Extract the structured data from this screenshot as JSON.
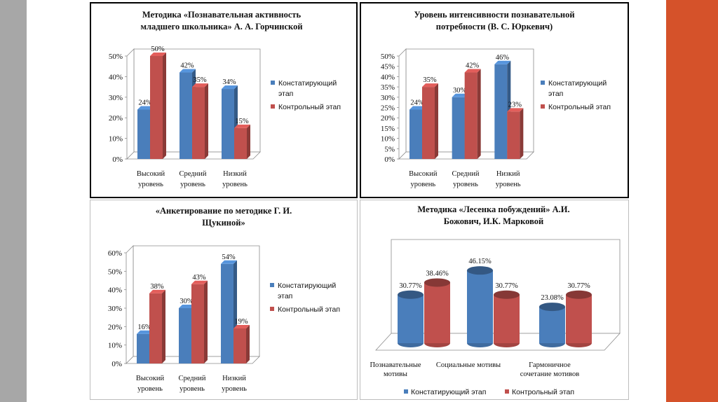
{
  "colors": {
    "blue": "#4a7ebb",
    "red": "#c0504d"
  },
  "chart_data": [
    {
      "type": "bar",
      "title_lines": [
        "Методика «Познавательная активность",
        "младшего школьника» А. А. Горчинской"
      ],
      "categories": [
        [
          "Высокий",
          "уровень"
        ],
        [
          "Средний",
          "уровень"
        ],
        [
          "Низкий",
          "уровень"
        ]
      ],
      "series": [
        {
          "name": "Констатирующий этап",
          "legend_lines": [
            "Констатирующий",
            "этап"
          ],
          "values": [
            24,
            42,
            34
          ],
          "labels": [
            "24%",
            "42%",
            "34%"
          ]
        },
        {
          "name": "Контрольный этап",
          "legend_lines": [
            "Контрольный этап"
          ],
          "values": [
            50,
            35,
            15
          ],
          "labels": [
            "50%",
            "35%",
            "15%"
          ]
        }
      ],
      "ylim": [
        0,
        50
      ],
      "ystep": 10,
      "yticks": [
        "0%",
        "10%",
        "20%",
        "30%",
        "40%",
        "50%"
      ]
    },
    {
      "type": "bar",
      "title_lines": [
        "Уровень интенсивности познавательной",
        "потребности (В. С. Юркевич)"
      ],
      "categories": [
        [
          "Высокий",
          "уровень"
        ],
        [
          "Средний",
          "уровень"
        ],
        [
          "Низкий",
          "уровень"
        ]
      ],
      "series": [
        {
          "name": "Констатирующий этап",
          "legend_lines": [
            "Констатирующий",
            "этап"
          ],
          "values": [
            24,
            30,
            46
          ],
          "labels": [
            "24%",
            "30%",
            "46%"
          ]
        },
        {
          "name": "Контрольный этап",
          "legend_lines": [
            "Контрольный этап"
          ],
          "values": [
            35,
            42,
            23
          ],
          "labels": [
            "35%",
            "42%",
            "23%"
          ]
        }
      ],
      "ylim": [
        0,
        50
      ],
      "ystep": 5,
      "yticks": [
        "0%",
        "5%",
        "10%",
        "15%",
        "20%",
        "25%",
        "30%",
        "35%",
        "40%",
        "45%",
        "50%"
      ]
    },
    {
      "type": "bar",
      "title_lines": [
        "«Анкетирование по методике Г. И.",
        "Щукиной»"
      ],
      "categories": [
        [
          "Высокий",
          "уровень"
        ],
        [
          "Средний",
          "уровень"
        ],
        [
          "Низкий",
          "уровень"
        ]
      ],
      "series": [
        {
          "name": "Констатирующий этап",
          "legend_lines": [
            "Констатирующий",
            "этап"
          ],
          "values": [
            16,
            30,
            54
          ],
          "labels": [
            "16%",
            "30%",
            "54%"
          ]
        },
        {
          "name": "Контрольный этап",
          "legend_lines": [
            "Контрольный этап"
          ],
          "values": [
            38,
            43,
            19
          ],
          "labels": [
            "38%",
            "43%",
            "19%"
          ]
        }
      ],
      "ylim": [
        0,
        60
      ],
      "ystep": 10,
      "yticks": [
        "0%",
        "10%",
        "20%",
        "30%",
        "40%",
        "50%",
        "60%"
      ]
    },
    {
      "type": "bar",
      "style": "cylinder",
      "title_lines": [
        "Методика «Лесенка побуждений» А.И.",
        "Божович, И.К. Марковой"
      ],
      "categories": [
        [
          "Познавательные",
          "мотивы"
        ],
        [
          "Социальные мотивы"
        ],
        [
          "Гармоничное",
          "сочетание мотивов"
        ]
      ],
      "series": [
        {
          "name": "Констатирующий этап",
          "values": [
            30.77,
            46.15,
            23.08
          ],
          "labels": [
            "30.77%",
            "46.15%",
            "23.08%"
          ]
        },
        {
          "name": "Контрольный этап",
          "values": [
            38.46,
            30.77,
            30.77
          ],
          "labels": [
            "38.46%",
            "30.77%",
            "30.77%"
          ]
        }
      ],
      "ylim": [
        0,
        50
      ]
    }
  ]
}
